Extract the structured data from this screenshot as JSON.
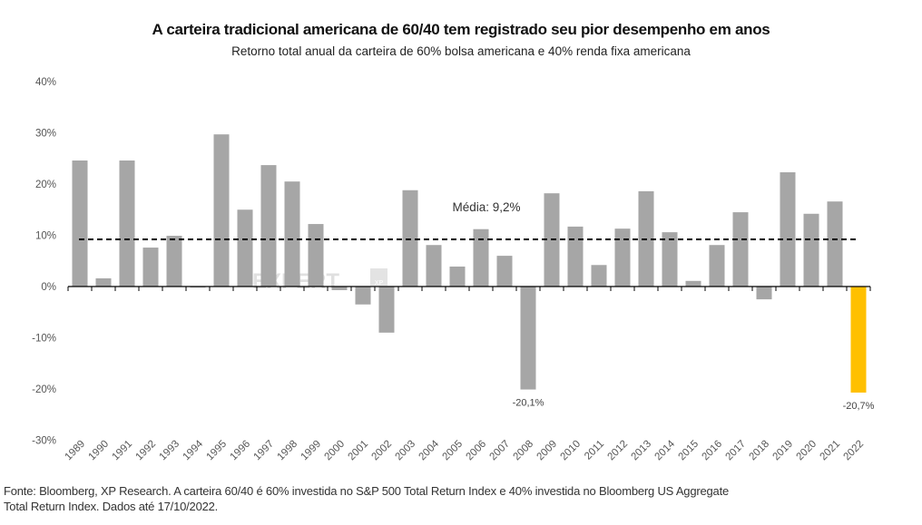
{
  "chart_data": {
    "type": "bar",
    "title": "A carteira tradicional americana de 60/40 tem registrado seu pior desempenho em anos",
    "subtitle": "Retorno total anual da carteira de 60% bolsa americana e 40% renda fixa americana",
    "xlabel": "",
    "ylabel": "",
    "ylim": [
      -30,
      40
    ],
    "yticks": [
      40,
      30,
      20,
      10,
      0,
      -10,
      -20,
      -30
    ],
    "ytick_labels": [
      "40%",
      "30%",
      "20%",
      "10%",
      "0%",
      "-10%",
      "-20%",
      "-30%"
    ],
    "grid": false,
    "legend": "none",
    "categories": [
      "1989",
      "1990",
      "1991",
      "1992",
      "1993",
      "1994",
      "1995",
      "1996",
      "1997",
      "1998",
      "1999",
      "2000",
      "2001",
      "2002",
      "2003",
      "2004",
      "2005",
      "2006",
      "2007",
      "2008",
      "2009",
      "2010",
      "2011",
      "2012",
      "2013",
      "2014",
      "2015",
      "2016",
      "2017",
      "2018",
      "2019",
      "2020",
      "2021",
      "2022"
    ],
    "values": [
      24.6,
      1.6,
      24.6,
      7.6,
      9.9,
      -0.2,
      29.7,
      15.0,
      23.7,
      20.5,
      12.2,
      -0.7,
      -3.5,
      -9.0,
      18.8,
      8.1,
      3.9,
      11.2,
      6.0,
      -20.1,
      18.2,
      11.7,
      4.2,
      11.3,
      18.6,
      10.6,
      1.1,
      8.1,
      14.5,
      -2.5,
      22.3,
      14.2,
      16.6,
      -20.7
    ],
    "bar_color": "#A6A6A6",
    "highlight": {
      "category": "2022",
      "color": "#FFC000"
    },
    "data_labels": [
      {
        "category": "2008",
        "text": "-20,1%"
      },
      {
        "category": "2022",
        "text": "-20,7%"
      }
    ],
    "reference_line": {
      "value": 9.2,
      "style": "dashed",
      "color": "#000000",
      "label": "Média: 9,2%"
    },
    "watermark": {
      "text": "EXPERT",
      "sub": "XP"
    }
  },
  "footer": {
    "line1": "Fonte: Bloomberg, XP Research. A carteira 60/40 é 60% investida no S&P 500 Total Return Index e 40% investida no Bloomberg US Aggregate",
    "line2": "Total Return Index. Dados até 17/10/2022."
  }
}
